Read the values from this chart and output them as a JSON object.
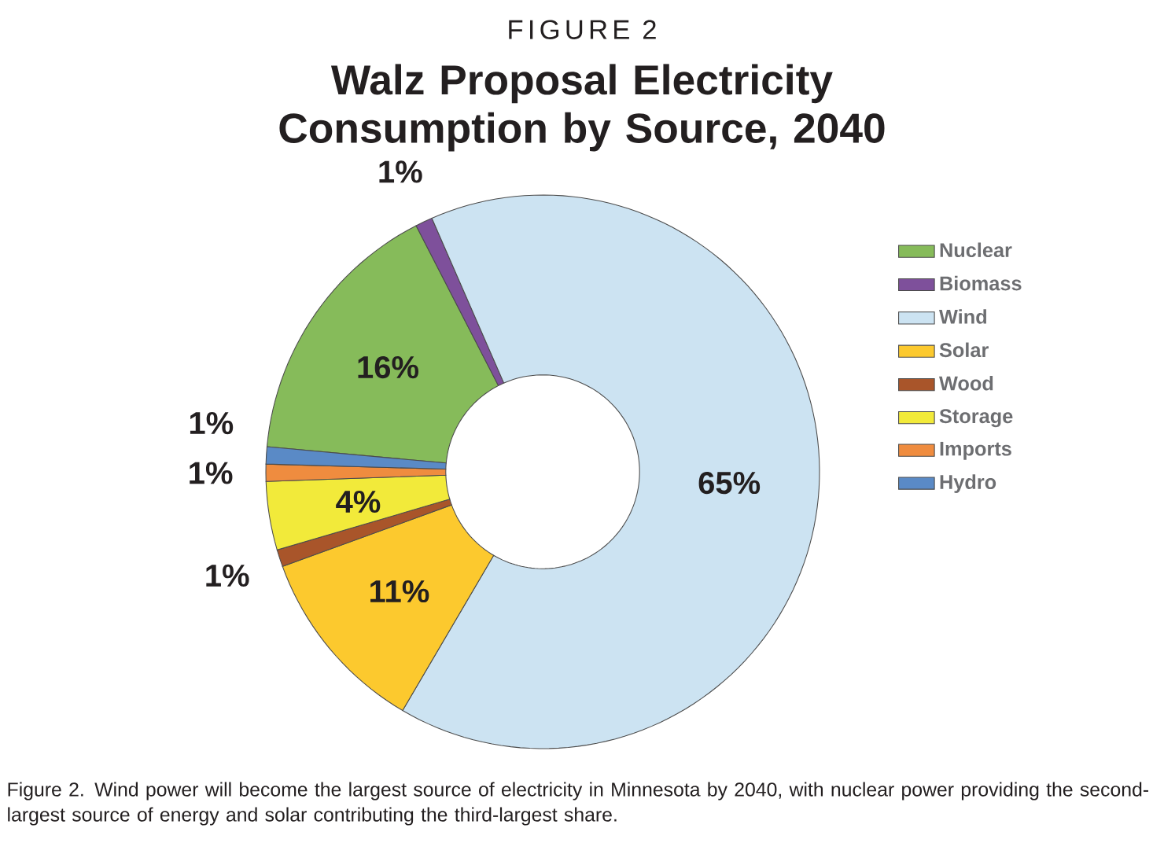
{
  "chart_data": {
    "type": "donut",
    "title": "Walz Proposal Electricity Consumption by Source, 2040",
    "annotations": [
      "FIGURE 2",
      "Figure 2. Wind power will become the largest source of electricity in Minnesota by 2040, with nuclear power providing the second-largest source of energy and solar contributing the third-largest share."
    ],
    "categories": [
      "Nuclear",
      "Biomass",
      "Wind",
      "Solar",
      "Wood",
      "Storage",
      "Imports",
      "Hydro"
    ],
    "values": [
      16,
      1,
      65,
      11,
      1,
      4,
      1,
      1
    ],
    "value_labels": [
      "16%",
      "1%",
      "65%",
      "11%",
      "1%",
      "4%",
      "1%",
      "1%"
    ],
    "colors": [
      "#86bb5a",
      "#7e509b",
      "#cce3f2",
      "#fcc92e",
      "#a9552a",
      "#f2ea3a",
      "#ef8c3f",
      "#5a8ac6"
    ],
    "legend": "right"
  }
}
